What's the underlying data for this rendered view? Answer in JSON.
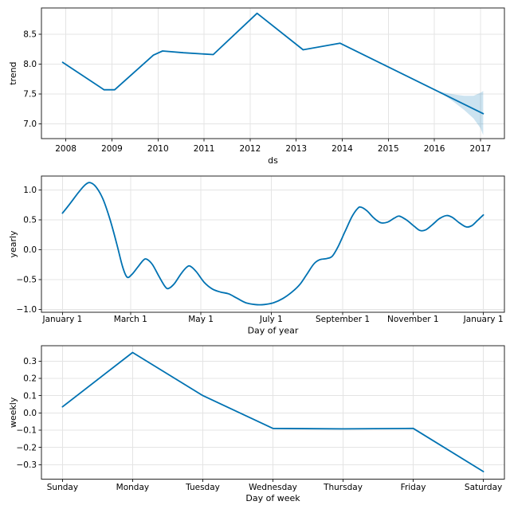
{
  "figure": {
    "background": "#ffffff",
    "line_color": "#0072B2",
    "band_color": "rgba(0,114,178,0.2)",
    "grid_color": "#e4e4e4",
    "spine_color": "#262626",
    "text_color": "#000000"
  },
  "chart_data": [
    {
      "type": "line",
      "title": "",
      "xlabel": "ds",
      "ylabel": "trend",
      "grid": true,
      "legend": null,
      "xlim": [
        2007.47,
        2017.52
      ],
      "ylim": [
        6.75,
        8.94
      ],
      "xticks": [
        {
          "value": 2008,
          "label": "2008"
        },
        {
          "value": 2009,
          "label": "2009"
        },
        {
          "value": 2010,
          "label": "2010"
        },
        {
          "value": 2011,
          "label": "2011"
        },
        {
          "value": 2012,
          "label": "2012"
        },
        {
          "value": 2013,
          "label": "2013"
        },
        {
          "value": 2014,
          "label": "2014"
        },
        {
          "value": 2015,
          "label": "2015"
        },
        {
          "value": 2016,
          "label": "2016"
        },
        {
          "value": 2017,
          "label": "2017"
        }
      ],
      "yticks": [
        {
          "value": 7.0,
          "label": "7.0"
        },
        {
          "value": 7.5,
          "label": "7.5"
        },
        {
          "value": 8.0,
          "label": "8.0"
        },
        {
          "value": 8.5,
          "label": "8.5"
        }
      ],
      "series": [
        {
          "name": "trend",
          "smooth": false,
          "x": [
            2007.93,
            2008.83,
            2009.06,
            2009.9,
            2010.1,
            2010.55,
            2011.2,
            2012.15,
            2013.15,
            2013.95,
            2017.06
          ],
          "y": [
            8.03,
            7.57,
            7.57,
            8.15,
            8.22,
            8.19,
            8.16,
            8.85,
            8.24,
            8.35,
            7.17
          ]
        }
      ],
      "band": {
        "x": [
          2016.05,
          2016.25,
          2016.45,
          2016.65,
          2016.85,
          2017.0,
          2017.06
        ],
        "upper": [
          7.553,
          7.515,
          7.49,
          7.47,
          7.47,
          7.52,
          7.55
        ],
        "lower": [
          7.553,
          7.46,
          7.35,
          7.23,
          7.09,
          6.93,
          6.81
        ]
      }
    },
    {
      "type": "line",
      "title": "",
      "xlabel": "Day of year",
      "ylabel": "yearly",
      "grid": true,
      "legend": null,
      "xlim": [
        -17.25,
        384.25
      ],
      "ylim": [
        -1.049,
        1.231
      ],
      "xticks": [
        {
          "value": 1,
          "label": "January 1"
        },
        {
          "value": 60,
          "label": "March 1"
        },
        {
          "value": 121,
          "label": "May 1"
        },
        {
          "value": 182,
          "label": "July 1"
        },
        {
          "value": 244,
          "label": "September 1"
        },
        {
          "value": 305,
          "label": "November 1"
        },
        {
          "value": 366,
          "label": "January 1"
        }
      ],
      "yticks": [
        {
          "value": -1.0,
          "label": "−1.0"
        },
        {
          "value": -0.5,
          "label": "−0.5"
        },
        {
          "value": 0.0,
          "label": "0.0"
        },
        {
          "value": 0.5,
          "label": "0.5"
        },
        {
          "value": 1.0,
          "label": "1.0"
        }
      ],
      "series": [
        {
          "name": "yearly",
          "smooth": true,
          "x": [
            1,
            8,
            15,
            21,
            25,
            30,
            36,
            42,
            48,
            53,
            57,
            61,
            66,
            71,
            74,
            79,
            85,
            90,
            93,
            98,
            104,
            109,
            112,
            117,
            124,
            131,
            138,
            145,
            152,
            160,
            168,
            176,
            184,
            192,
            200,
            207,
            213,
            219,
            224,
            230,
            235,
            240,
            246,
            252,
            257,
            260,
            265,
            271,
            277,
            283,
            289,
            293,
            299,
            306,
            311,
            316,
            322,
            328,
            334,
            339,
            345,
            351,
            356,
            361,
            366
          ],
          "y": [
            0.61,
            0.78,
            0.96,
            1.09,
            1.12,
            1.05,
            0.85,
            0.52,
            0.1,
            -0.28,
            -0.46,
            -0.42,
            -0.3,
            -0.18,
            -0.16,
            -0.25,
            -0.46,
            -0.62,
            -0.65,
            -0.57,
            -0.4,
            -0.29,
            -0.28,
            -0.37,
            -0.55,
            -0.66,
            -0.71,
            -0.74,
            -0.81,
            -0.89,
            -0.92,
            -0.92,
            -0.89,
            -0.82,
            -0.71,
            -0.58,
            -0.41,
            -0.24,
            -0.17,
            -0.15,
            -0.11,
            0.05,
            0.3,
            0.55,
            0.69,
            0.71,
            0.65,
            0.53,
            0.45,
            0.46,
            0.53,
            0.56,
            0.5,
            0.39,
            0.32,
            0.33,
            0.42,
            0.52,
            0.57,
            0.54,
            0.45,
            0.38,
            0.4,
            0.49,
            0.58
          ]
        }
      ],
      "band": null
    },
    {
      "type": "line",
      "title": "",
      "xlabel": "Day of week",
      "ylabel": "weekly",
      "grid": true,
      "legend": null,
      "xlim": [
        -0.3,
        6.3
      ],
      "ylim": [
        -0.385,
        0.389
      ],
      "xticks": [
        {
          "value": 0,
          "label": "Sunday"
        },
        {
          "value": 1,
          "label": "Monday"
        },
        {
          "value": 2,
          "label": "Tuesday"
        },
        {
          "value": 3,
          "label": "Wednesday"
        },
        {
          "value": 4,
          "label": "Thursday"
        },
        {
          "value": 5,
          "label": "Friday"
        },
        {
          "value": 6,
          "label": "Saturday"
        }
      ],
      "yticks": [
        {
          "value": -0.3,
          "label": "−0.3"
        },
        {
          "value": -0.2,
          "label": "−0.2"
        },
        {
          "value": -0.1,
          "label": "−0.1"
        },
        {
          "value": 0.0,
          "label": "0.0"
        },
        {
          "value": 0.1,
          "label": "0.1"
        },
        {
          "value": 0.2,
          "label": "0.2"
        },
        {
          "value": 0.3,
          "label": "0.3"
        }
      ],
      "series": [
        {
          "name": "weekly",
          "smooth": false,
          "x": [
            0,
            1,
            2,
            3,
            4,
            5,
            6
          ],
          "y": [
            0.035,
            0.35,
            0.1,
            -0.09,
            -0.093,
            -0.09,
            -0.34
          ]
        }
      ],
      "band": null
    }
  ]
}
